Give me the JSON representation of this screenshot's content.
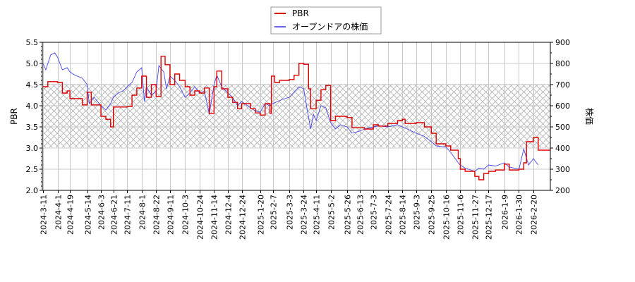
{
  "chart_data": {
    "type": "line",
    "title": "",
    "legend": {
      "position": "top-center",
      "entries": [
        {
          "label": "PBR",
          "color": "#dd0000"
        },
        {
          "label": "オープンドアの株価",
          "color": "#4444ee"
        }
      ]
    },
    "y_left": {
      "label": "PBR",
      "ticks": [
        "2.0",
        "2.5",
        "3.0",
        "3.5",
        "4.0",
        "4.5",
        "5.0",
        "5.5"
      ],
      "range": [
        2.0,
        5.5
      ]
    },
    "y_right": {
      "label": "株価",
      "ticks": [
        "200",
        "300",
        "400",
        "500",
        "600",
        "700",
        "800",
        "900"
      ],
      "range": [
        200,
        900
      ]
    },
    "x_ticks": [
      "2024-3-11",
      "2024-4-1",
      "2024-4-19",
      "2024-5-14",
      "2024-6-3",
      "2024-6-21",
      "2024-7-11",
      "2024-8-1",
      "2024-8-22",
      "2024-9-11",
      "2024-10-3",
      "2024-10-24",
      "2024-11-14",
      "2024-12-4",
      "2024-12-24",
      "2025-1-20",
      "2025-2-7",
      "2025-3-3",
      "2025-3-24",
      "2025-4-11",
      "2025-5-2",
      "2025-5-26",
      "2025-6-13",
      "2025-7-3",
      "2025-7-24",
      "2025-8-14",
      "2025-9-3",
      "2025-9-25",
      "2025-10-16",
      "2025-11-6",
      "2025-11-27",
      "2025-12-17",
      "2026-1-9",
      "2026-1-30",
      "2026-2-20"
    ],
    "grid": true,
    "shaded_band": {
      "pbr_from": 3.02,
      "pbr_to": 4.52,
      "pattern": "crosshatch"
    },
    "series": [
      {
        "name": "PBR",
        "axis": "left",
        "color": "#dd0000",
        "step": true,
        "points": [
          [
            "2024-3-11",
            4.45
          ],
          [
            "2024-3-18",
            4.57
          ],
          [
            "2024-4-1",
            4.55
          ],
          [
            "2024-4-8",
            4.3
          ],
          [
            "2024-4-15",
            4.35
          ],
          [
            "2024-4-19",
            4.17
          ],
          [
            "2024-5-7",
            4.02
          ],
          [
            "2024-5-14",
            4.32
          ],
          [
            "2024-5-20",
            4.02
          ],
          [
            "2024-6-3",
            3.75
          ],
          [
            "2024-6-10",
            3.68
          ],
          [
            "2024-6-17",
            3.5
          ],
          [
            "2024-6-21",
            3.97
          ],
          [
            "2024-7-11",
            3.98
          ],
          [
            "2024-7-18",
            4.25
          ],
          [
            "2024-7-25",
            4.42
          ],
          [
            "2024-8-1",
            4.7
          ],
          [
            "2024-8-8",
            4.2
          ],
          [
            "2024-8-15",
            4.5
          ],
          [
            "2024-8-22",
            4.22
          ],
          [
            "2024-8-29",
            5.17
          ],
          [
            "2024-9-4",
            4.97
          ],
          [
            "2024-9-11",
            4.5
          ],
          [
            "2024-9-18",
            4.75
          ],
          [
            "2024-9-25",
            4.6
          ],
          [
            "2024-10-3",
            4.45
          ],
          [
            "2024-10-10",
            4.25
          ],
          [
            "2024-10-17",
            4.35
          ],
          [
            "2024-10-24",
            4.3
          ],
          [
            "2024-10-31",
            4.42
          ],
          [
            "2024-11-7",
            3.82
          ],
          [
            "2024-11-14",
            4.45
          ],
          [
            "2024-11-18",
            4.82
          ],
          [
            "2024-11-25",
            4.4
          ],
          [
            "2024-12-4",
            4.2
          ],
          [
            "2024-12-11",
            4.08
          ],
          [
            "2024-12-18",
            3.93
          ],
          [
            "2024-12-24",
            4.05
          ],
          [
            "2025-1-6",
            3.93
          ],
          [
            "2025-1-13",
            3.83
          ],
          [
            "2025-1-20",
            3.78
          ],
          [
            "2025-1-27",
            4.05
          ],
          [
            "2025-2-3",
            3.82
          ],
          [
            "2025-2-5",
            4.7
          ],
          [
            "2025-2-10",
            4.55
          ],
          [
            "2025-2-17",
            4.6
          ],
          [
            "2025-3-3",
            4.62
          ],
          [
            "2025-3-10",
            4.72
          ],
          [
            "2025-3-17",
            5.0
          ],
          [
            "2025-3-24",
            4.98
          ],
          [
            "2025-3-31",
            4.4
          ],
          [
            "2025-4-3",
            3.93
          ],
          [
            "2025-4-11",
            4.13
          ],
          [
            "2025-4-18",
            4.38
          ],
          [
            "2025-4-25",
            4.48
          ],
          [
            "2025-5-2",
            3.65
          ],
          [
            "2025-5-9",
            3.75
          ],
          [
            "2025-5-26",
            3.72
          ],
          [
            "2025-6-2",
            3.48
          ],
          [
            "2025-6-13",
            3.48
          ],
          [
            "2025-6-20",
            3.45
          ],
          [
            "2025-7-3",
            3.55
          ],
          [
            "2025-7-10",
            3.52
          ],
          [
            "2025-7-24",
            3.58
          ],
          [
            "2025-8-7",
            3.65
          ],
          [
            "2025-8-14",
            3.68
          ],
          [
            "2025-8-18",
            3.58
          ],
          [
            "2025-9-3",
            3.6
          ],
          [
            "2025-9-15",
            3.5
          ],
          [
            "2025-9-25",
            3.35
          ],
          [
            "2025-10-2",
            3.1
          ],
          [
            "2025-10-16",
            3.05
          ],
          [
            "2025-10-23",
            2.95
          ],
          [
            "2025-11-3",
            2.75
          ],
          [
            "2025-11-6",
            2.5
          ],
          [
            "2025-11-13",
            2.45
          ],
          [
            "2025-11-27",
            2.33
          ],
          [
            "2025-12-3",
            2.25
          ],
          [
            "2025-12-10",
            2.4
          ],
          [
            "2025-12-17",
            2.45
          ],
          [
            "2025-12-27",
            2.48
          ],
          [
            "2026-1-9",
            2.62
          ],
          [
            "2026-1-16",
            2.48
          ],
          [
            "2026-1-30",
            2.5
          ],
          [
            "2026-2-6",
            2.65
          ],
          [
            "2026-2-10",
            3.15
          ],
          [
            "2026-2-20",
            3.25
          ],
          [
            "2026-2-27",
            2.95
          ]
        ]
      },
      {
        "name": "オープンドアの株価",
        "axis": "right",
        "color": "#4444ee",
        "step": false,
        "points": [
          [
            "2024-3-11",
            800
          ],
          [
            "2024-3-15",
            770
          ],
          [
            "2024-3-22",
            840
          ],
          [
            "2024-3-28",
            850
          ],
          [
            "2024-4-1",
            830
          ],
          [
            "2024-4-8",
            770
          ],
          [
            "2024-4-15",
            780
          ],
          [
            "2024-4-19",
            760
          ],
          [
            "2024-4-26",
            745
          ],
          [
            "2024-5-7",
            730
          ],
          [
            "2024-5-14",
            700
          ],
          [
            "2024-5-17",
            610
          ],
          [
            "2024-5-24",
            640
          ],
          [
            "2024-6-3",
            600
          ],
          [
            "2024-6-10",
            580
          ],
          [
            "2024-6-17",
            610
          ],
          [
            "2024-6-21",
            640
          ],
          [
            "2024-6-28",
            660
          ],
          [
            "2024-7-5",
            670
          ],
          [
            "2024-7-11",
            690
          ],
          [
            "2024-7-18",
            710
          ],
          [
            "2024-7-25",
            760
          ],
          [
            "2024-8-1",
            780
          ],
          [
            "2024-8-5",
            620
          ],
          [
            "2024-8-8",
            690
          ],
          [
            "2024-8-15",
            650
          ],
          [
            "2024-8-22",
            670
          ],
          [
            "2024-8-26",
            790
          ],
          [
            "2024-9-2",
            760
          ],
          [
            "2024-9-6",
            680
          ],
          [
            "2024-9-11",
            740
          ],
          [
            "2024-9-18",
            720
          ],
          [
            "2024-9-25",
            690
          ],
          [
            "2024-10-3",
            640
          ],
          [
            "2024-10-10",
            660
          ],
          [
            "2024-10-17",
            690
          ],
          [
            "2024-10-24",
            660
          ],
          [
            "2024-10-31",
            670
          ],
          [
            "2024-11-7",
            560
          ],
          [
            "2024-11-14",
            700
          ],
          [
            "2024-11-18",
            745
          ],
          [
            "2024-11-25",
            690
          ],
          [
            "2024-12-4",
            660
          ],
          [
            "2024-12-11",
            640
          ],
          [
            "2024-12-18",
            600
          ],
          [
            "2024-12-24",
            620
          ],
          [
            "2025-1-6",
            590
          ],
          [
            "2025-1-13",
            575
          ],
          [
            "2025-1-20",
            570
          ],
          [
            "2025-1-27",
            610
          ],
          [
            "2025-2-3",
            600
          ],
          [
            "2025-2-7",
            610
          ],
          [
            "2025-2-14",
            620
          ],
          [
            "2025-2-21",
            630
          ],
          [
            "2025-3-3",
            640
          ],
          [
            "2025-3-10",
            665
          ],
          [
            "2025-3-17",
            690
          ],
          [
            "2025-3-24",
            680
          ],
          [
            "2025-3-28",
            600
          ],
          [
            "2025-4-3",
            490
          ],
          [
            "2025-4-7",
            560
          ],
          [
            "2025-4-11",
            530
          ],
          [
            "2025-4-18",
            600
          ],
          [
            "2025-4-25",
            590
          ],
          [
            "2025-5-2",
            520
          ],
          [
            "2025-5-9",
            490
          ],
          [
            "2025-5-16",
            510
          ],
          [
            "2025-5-26",
            500
          ],
          [
            "2025-6-2",
            470
          ],
          [
            "2025-6-13",
            480
          ],
          [
            "2025-6-20",
            490
          ],
          [
            "2025-7-3",
            500
          ],
          [
            "2025-7-10",
            505
          ],
          [
            "2025-7-24",
            500
          ],
          [
            "2025-8-7",
            510
          ],
          [
            "2025-8-14",
            500
          ],
          [
            "2025-8-21",
            490
          ],
          [
            "2025-9-3",
            470
          ],
          [
            "2025-9-15",
            455
          ],
          [
            "2025-9-25",
            430
          ],
          [
            "2025-10-2",
            410
          ],
          [
            "2025-10-16",
            405
          ],
          [
            "2025-10-23",
            380
          ],
          [
            "2025-11-3",
            330
          ],
          [
            "2025-11-6",
            320
          ],
          [
            "2025-11-13",
            305
          ],
          [
            "2025-11-27",
            290
          ],
          [
            "2025-12-3",
            305
          ],
          [
            "2025-12-10",
            300
          ],
          [
            "2025-12-17",
            320
          ],
          [
            "2025-12-27",
            315
          ],
          [
            "2026-1-9",
            330
          ],
          [
            "2026-1-16",
            310
          ],
          [
            "2026-1-30",
            300
          ],
          [
            "2026-2-6",
            395
          ],
          [
            "2026-2-13",
            320
          ],
          [
            "2026-2-20",
            350
          ],
          [
            "2026-2-27",
            320
          ]
        ]
      }
    ]
  }
}
